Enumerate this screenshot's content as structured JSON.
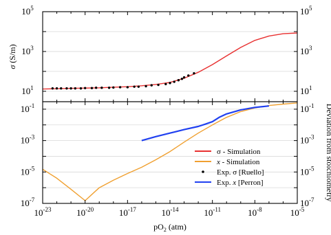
{
  "chart_data": [
    {
      "type": "line",
      "panel": "top",
      "xscale": "log",
      "yscale": "log",
      "xlim": [
        1e-23,
        1e-05
      ],
      "ylim": [
        3,
        100000
      ],
      "grid": "horizontal",
      "ylabel_prefix": "σ",
      "ylabel_unit": " (S/m)",
      "ytick_labels": [
        {
          "value": 10,
          "base": "10",
          "exp": "1"
        },
        {
          "value": 1000,
          "base": "10",
          "exp": "3"
        },
        {
          "value": 100000,
          "base": "10",
          "exp": "5"
        }
      ],
      "ytick_labels_right": [
        {
          "value": 10,
          "base": "10",
          "exp": "1"
        },
        {
          "value": 1000,
          "base": "10",
          "exp": "3"
        },
        {
          "value": 100000,
          "base": "10",
          "exp": "5"
        }
      ],
      "series": [
        {
          "name": "σ - Simulation",
          "style": "line",
          "color": "#e83030",
          "x": [
            1e-23,
            1e-22,
            1e-21,
            1e-20,
            1e-19,
            1e-18,
            1e-17,
            1e-16,
            1e-15,
            1e-14,
            1e-13,
            1e-12,
            1e-11,
            1e-10,
            1e-09,
            1e-08,
            1e-07,
            1e-06,
            1e-05
          ],
          "y": [
            13,
            13.5,
            14,
            14.5,
            15,
            16,
            17,
            19,
            22,
            28,
            45,
            90,
            220,
            600,
            1600,
            3600,
            6000,
            7800,
            8500
          ]
        },
        {
          "name": "Exp. σ [Ruello]",
          "style": "markers",
          "color": "#000000",
          "x": [
            5e-23,
            1e-22,
            2e-22,
            5e-22,
            1e-21,
            2e-21,
            5e-21,
            1e-20,
            3e-20,
            6e-20,
            1.5e-19,
            5e-19,
            1e-18,
            3e-18,
            1e-17,
            3e-17,
            6e-17,
            2e-16,
            5e-16,
            1.5e-15,
            5e-15,
            1e-14,
            2e-14,
            4e-14,
            7e-14,
            1e-13,
            2e-13,
            5e-13
          ],
          "y": [
            14,
            14,
            14,
            14,
            14,
            14,
            14,
            14.5,
            14.5,
            15,
            15,
            15,
            15.5,
            16,
            16,
            17,
            17,
            18,
            20,
            21,
            23,
            26,
            30,
            36,
            42,
            50,
            62,
            80
          ]
        }
      ]
    },
    {
      "type": "line",
      "panel": "bottom",
      "xscale": "log",
      "yscale": "log",
      "xlim": [
        1e-23,
        1e-05
      ],
      "ylim": [
        1e-07,
        0.3
      ],
      "grid": "horizontal",
      "xlabel_prefix": "pO",
      "xlabel_sub": "2",
      "xlabel_unit": " (atm)",
      "ylabel_right": "Deviation from stoichiometry",
      "xtick_labels": [
        {
          "value": 1e-23,
          "base": "10",
          "exp": "-23"
        },
        {
          "value": 1e-20,
          "base": "10",
          "exp": "-20"
        },
        {
          "value": 1e-17,
          "base": "10",
          "exp": "-17"
        },
        {
          "value": 1e-14,
          "base": "10",
          "exp": "-14"
        },
        {
          "value": 1e-11,
          "base": "10",
          "exp": "-11"
        },
        {
          "value": 1e-08,
          "base": "10",
          "exp": "-8"
        },
        {
          "value": 1e-05,
          "base": "10",
          "exp": "-5"
        }
      ],
      "ytick_labels": [
        {
          "value": 1e-07,
          "base": "10",
          "exp": "-7"
        },
        {
          "value": 1e-05,
          "base": "10",
          "exp": "-5"
        },
        {
          "value": 0.001,
          "base": "10",
          "exp": "-3"
        },
        {
          "value": 0.1,
          "base": "10",
          "exp": "-1"
        }
      ],
      "ytick_labels_right": [
        {
          "value": 1e-07,
          "base": "10",
          "exp": "-7"
        },
        {
          "value": 1e-05,
          "base": "10",
          "exp": "-5"
        },
        {
          "value": 0.001,
          "base": "10",
          "exp": "-3"
        },
        {
          "value": 0.1,
          "base": "10",
          "exp": "-1"
        }
      ],
      "series": [
        {
          "name": "x - Simulation",
          "style": "line",
          "color": "#f0a030",
          "x": [
            1e-23,
            1e-22,
            1e-21,
            1e-20,
            1e-19,
            1e-18,
            1e-17,
            1e-16,
            1e-15,
            1e-14,
            1e-13,
            1e-12,
            1e-11,
            1e-10,
            1e-09,
            1e-08,
            1e-07,
            1e-06,
            1e-05
          ],
          "y": [
            1.5e-05,
            4e-06,
            8e-07,
            1.5e-07,
            1e-06,
            3e-06,
            8e-06,
            2e-05,
            6e-05,
            0.0002,
            0.0008,
            0.003,
            0.01,
            0.03,
            0.07,
            0.12,
            0.17,
            0.21,
            0.25
          ]
        },
        {
          "name": "Exp. x [Perron]",
          "style": "line",
          "color": "#2040f0",
          "x": [
            1e-16,
            1e-15,
            1e-14,
            1e-13,
            1e-12,
            3e-12,
            1e-11,
            3e-11,
            1e-10,
            1e-09,
            1e-08,
            1e-07
          ],
          "y": [
            0.001,
            0.0018,
            0.003,
            0.005,
            0.008,
            0.011,
            0.016,
            0.03,
            0.05,
            0.09,
            0.13,
            0.16
          ]
        }
      ]
    }
  ],
  "legend": {
    "position": "bottom-right of lower panel",
    "entries": [
      {
        "symbol": "line",
        "color": "#e83030",
        "italic": "",
        "pre": "σ",
        "rest": " - Simulation"
      },
      {
        "symbol": "line",
        "color": "#f0a030",
        "italic": "x",
        "pre": "",
        "rest": " - Simulation"
      },
      {
        "symbol": "dot",
        "color": "#000000",
        "italic": "",
        "pre": "Exp. σ [Ruello]",
        "rest": ""
      },
      {
        "symbol": "line",
        "color": "#2040f0",
        "italic": "x",
        "pre": "Exp. ",
        "rest": " [Perron]"
      }
    ]
  }
}
